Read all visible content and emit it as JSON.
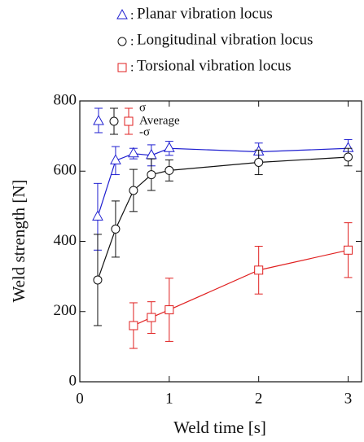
{
  "chart_data": {
    "type": "errorbar-line",
    "xlabel": "Weld time [s]",
    "ylabel": "Weld strength [N]",
    "xlim": [
      0,
      3.15
    ],
    "ylim": [
      0,
      800
    ],
    "xticks": [
      0,
      1,
      2,
      3
    ],
    "yticks": [
      0,
      200,
      400,
      600,
      800
    ],
    "legend_separator": ":",
    "inset_legend": {
      "upper": "σ",
      "middle": "Average",
      "lower": "-σ"
    },
    "series": [
      {
        "name": "Planar vibration locus",
        "color": "#1f1fd0",
        "marker": "triangle",
        "x": [
          0.2,
          0.4,
          0.6,
          0.8,
          1,
          2,
          3
        ],
        "values": [
          470,
          630,
          650,
          645,
          665,
          655,
          665
        ],
        "errors": [
          95,
          40,
          15,
          30,
          20,
          25,
          25
        ]
      },
      {
        "name": "Longitudinal vibration locus",
        "color": "#111111",
        "marker": "circle",
        "x": [
          0.2,
          0.4,
          0.6,
          0.8,
          1,
          2,
          3
        ],
        "values": [
          290,
          435,
          545,
          590,
          602,
          625,
          640
        ],
        "errors": [
          130,
          80,
          60,
          45,
          30,
          35,
          25
        ]
      },
      {
        "name": "Torsional vibration locus",
        "color": "#e02020",
        "marker": "square",
        "x": [
          0.6,
          0.8,
          1,
          2,
          3
        ],
        "values": [
          160,
          183,
          205,
          318,
          375
        ],
        "errors": [
          65,
          45,
          90,
          68,
          78
        ]
      }
    ]
  }
}
